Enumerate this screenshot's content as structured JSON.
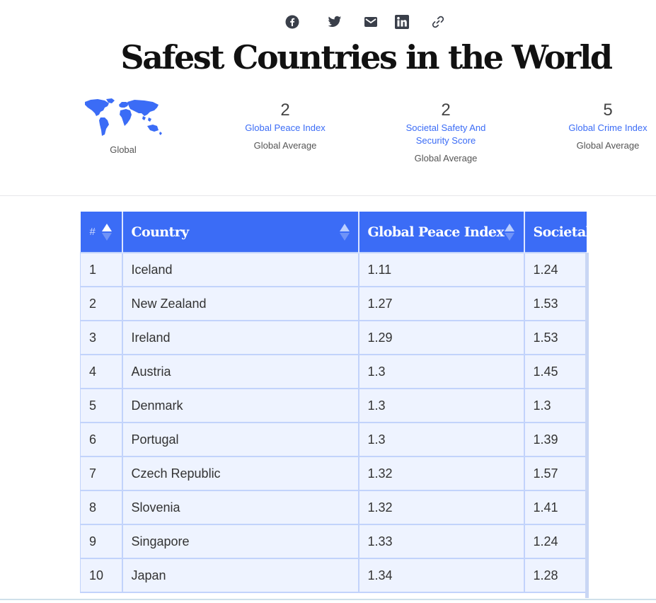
{
  "share": {
    "icons": [
      "facebook-icon",
      "twitter-icon",
      "email-icon",
      "linkedin-icon",
      "link-icon"
    ]
  },
  "header": {
    "title": "Safest Countries in the World"
  },
  "globe": {
    "label": "Global"
  },
  "stats": [
    {
      "value": "2",
      "link": "Global Peace Index",
      "sub": "Global Average"
    },
    {
      "value": "2",
      "link": "Societal Safety And Security Score",
      "sub": "Global Average"
    },
    {
      "value": "5",
      "link": "Global Crime Index",
      "sub": "Global Average"
    }
  ],
  "table": {
    "columns": [
      "#",
      "Country",
      "Global Peace Index",
      "Societal Safety And Security Score"
    ],
    "rows": [
      [
        "1",
        "Iceland",
        "1.11",
        "1.24"
      ],
      [
        "2",
        "New Zealand",
        "1.27",
        "1.53"
      ],
      [
        "3",
        "Ireland",
        "1.29",
        "1.53"
      ],
      [
        "4",
        "Austria",
        "1.3",
        "1.45"
      ],
      [
        "5",
        "Denmark",
        "1.3",
        "1.3"
      ],
      [
        "6",
        "Portugal",
        "1.3",
        "1.39"
      ],
      [
        "7",
        "Czech Republic",
        "1.32",
        "1.57"
      ],
      [
        "8",
        "Slovenia",
        "1.32",
        "1.41"
      ],
      [
        "9",
        "Singapore",
        "1.33",
        "1.24"
      ],
      [
        "10",
        "Japan",
        "1.34",
        "1.28"
      ]
    ]
  },
  "colors": {
    "accent": "#3b6cf6",
    "row_bg": "#eef3ff",
    "row_border": "#c2d3fb"
  }
}
